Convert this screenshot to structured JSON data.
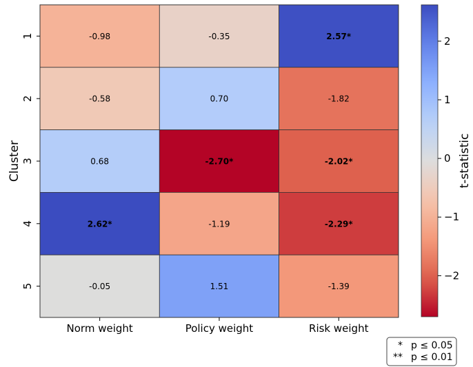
{
  "chart_data": {
    "type": "heatmap",
    "title": "",
    "xlabel": "",
    "ylabel": "Cluster",
    "x_categories": [
      "Norm weight",
      "Policy weight",
      "Risk weight"
    ],
    "y_categories": [
      "1",
      "2",
      "3",
      "4",
      "5"
    ],
    "values": [
      [
        -0.98,
        -0.35,
        2.57
      ],
      [
        -0.58,
        0.7,
        -1.82
      ],
      [
        0.68,
        -2.7,
        -2.02
      ],
      [
        2.62,
        -1.19,
        -2.29
      ],
      [
        -0.05,
        1.51,
        -1.39
      ]
    ],
    "cell_labels": [
      [
        "-0.98",
        "-0.35",
        "2.57*"
      ],
      [
        "-0.58",
        "0.70",
        "-1.82"
      ],
      [
        "0.68",
        "-2.70*",
        "-2.02*"
      ],
      [
        "2.62*",
        "-1.19",
        "-2.29*"
      ],
      [
        "-0.05",
        "1.51",
        "-1.39"
      ]
    ],
    "significant": [
      [
        false,
        false,
        true
      ],
      [
        false,
        false,
        false
      ],
      [
        false,
        true,
        true
      ],
      [
        true,
        false,
        true
      ],
      [
        false,
        false,
        false
      ]
    ],
    "colormap": "coolwarm_r",
    "vmin": -2.7,
    "vmax": 2.62,
    "colorbar": {
      "label": "t-statistic",
      "ticks": [
        2,
        1,
        0,
        -1,
        -2
      ],
      "tick_labels": [
        "2",
        "1",
        "0",
        "−1",
        "−2"
      ]
    },
    "significance_legend": [
      {
        "stars": "*",
        "label": "p ≤ 0.05"
      },
      {
        "stars": "**",
        "label": "p ≤ 0.01"
      }
    ],
    "grid": false
  }
}
